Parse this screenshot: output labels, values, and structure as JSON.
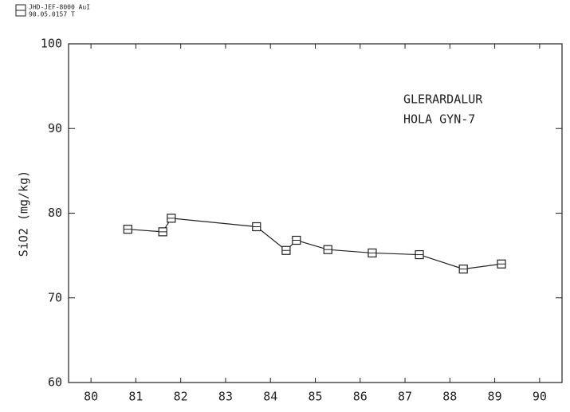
{
  "header": {
    "line1": "JHD-JEF-8000 AuI",
    "line2": "90.05.0157 T"
  },
  "chart_data": {
    "type": "line",
    "ylabel": "SiO2 (mg/kg)",
    "annotations": [
      "GLERARDALUR",
      "HOLA GYN-7"
    ],
    "x": [
      80.82,
      81.6,
      81.79,
      83.69,
      84.35,
      84.58,
      85.28,
      86.27,
      87.32,
      88.3,
      89.15
    ],
    "series": [
      {
        "name": "SiO2",
        "color": "#222",
        "values": [
          78.1,
          77.8,
          79.4,
          78.4,
          75.6,
          76.8,
          75.7,
          75.3,
          75.1,
          73.4,
          74.0
        ]
      }
    ],
    "xlim": [
      79.5,
      90.5
    ],
    "xticks": [
      80,
      81,
      82,
      83,
      84,
      85,
      86,
      87,
      88,
      89,
      90
    ],
    "ylim": [
      60,
      100
    ],
    "yticks": [
      60,
      70,
      80,
      90,
      100
    ]
  }
}
